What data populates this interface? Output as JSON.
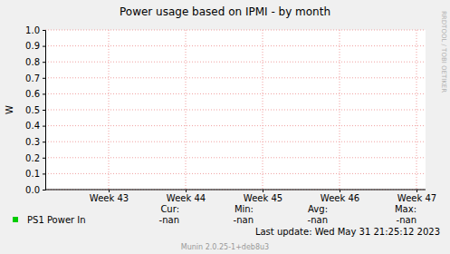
{
  "chart_data": {
    "type": "line",
    "title": "Power usage based on IPMI - by month",
    "y_label": "W",
    "categories": [
      "Week 43",
      "Week 44",
      "Week 45",
      "Week 46",
      "Week 47"
    ],
    "series": [
      {
        "name": "PS1 Power In",
        "color": "#00cc00",
        "values": [
          null,
          null,
          null,
          null,
          null
        ],
        "stats": [
          "-nan",
          "-nan",
          "-nan",
          "-nan"
        ]
      }
    ],
    "stat_labels": [
      "Cur:",
      "Min:",
      "Avg:",
      "Max:"
    ],
    "ylim": [
      0,
      1
    ],
    "yticks": [
      {
        "value": 0,
        "label": "0.0"
      },
      {
        "value": 0.1,
        "label": "0.1"
      },
      {
        "value": 0.2,
        "label": "0.2"
      },
      {
        "value": 0.3,
        "label": "0.3"
      },
      {
        "value": 0.4,
        "label": "0.4"
      },
      {
        "value": 0.5,
        "label": "0.5"
      },
      {
        "value": 0.6,
        "label": "0.6"
      },
      {
        "value": 0.7,
        "label": "0.7"
      },
      {
        "value": 0.8,
        "label": "0.8"
      },
      {
        "value": 0.9,
        "label": "0.9"
      },
      {
        "value": 1,
        "label": "1.0"
      }
    ],
    "grid": true,
    "last_update": "Last update: Wed May 31 21:25:12 2023",
    "footer": "Munin 2.0.25-1+deb8u3",
    "watermark": "RRDTOOL / TOBI OETIKER"
  }
}
